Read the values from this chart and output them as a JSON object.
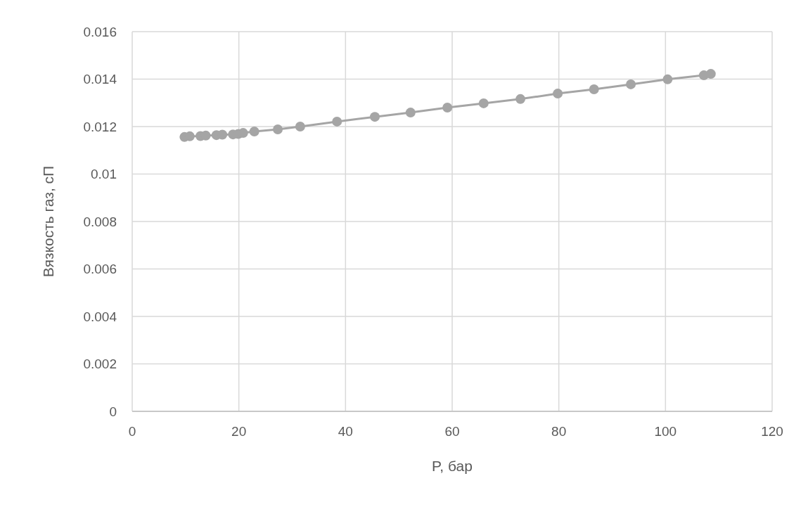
{
  "chart_data": {
    "type": "line",
    "xlabel": "P, бар",
    "ylabel": "Вязкость газ, сП",
    "xlim": [
      0,
      120
    ],
    "xticks": [
      0,
      20,
      40,
      60,
      80,
      100,
      120
    ],
    "ylim": [
      0,
      0.016
    ],
    "yticks": [
      0,
      0.002,
      0.004,
      0.006,
      0.008,
      0.01,
      0.012,
      0.014,
      0.016
    ],
    "grid": true,
    "marker": "circle",
    "line_style": "solid",
    "series": [
      {
        "color": "#a5a5a5",
        "x": [
          9.8,
          10.8,
          12.8,
          13.8,
          15.8,
          16.9,
          18.9,
          19.9,
          20.8,
          22.9,
          27.3,
          31.5,
          38.4,
          45.5,
          52.2,
          59.1,
          65.9,
          72.8,
          79.8,
          86.6,
          93.5,
          100.4,
          107.2,
          108.5
        ],
        "values": [
          0.01156,
          0.01159,
          0.0116,
          0.01162,
          0.01164,
          0.01166,
          0.01167,
          0.01169,
          0.01173,
          0.01179,
          0.01188,
          0.012,
          0.01221,
          0.01241,
          0.01259,
          0.0128,
          0.01298,
          0.01316,
          0.01339,
          0.01357,
          0.01378,
          0.01399,
          0.01416,
          0.01422
        ]
      }
    ]
  }
}
